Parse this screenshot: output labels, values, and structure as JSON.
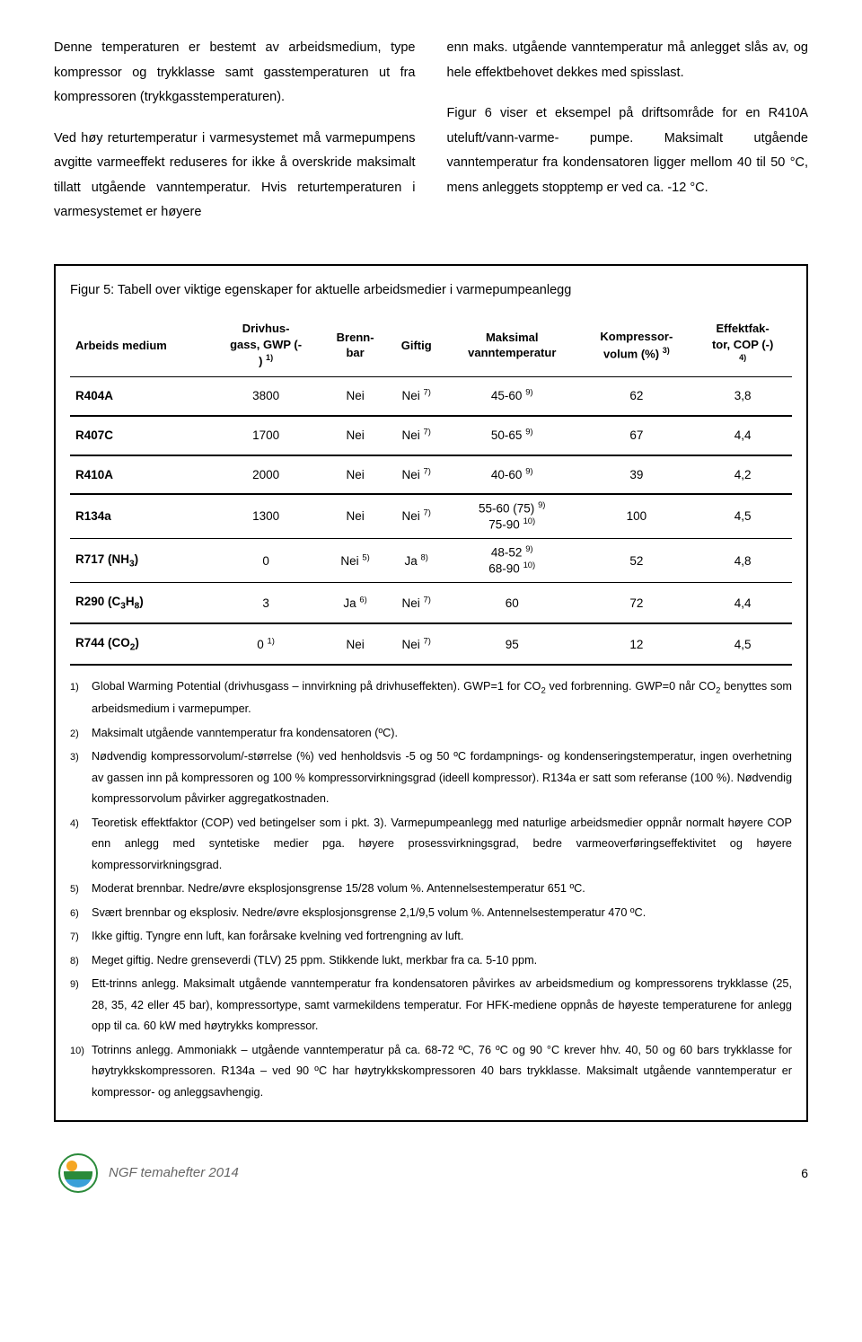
{
  "intro": {
    "left_p1": "Denne temperaturen er bestemt av arbeidsmedium, type kompressor og trykklasse samt gasstemperaturen ut fra kompressoren (trykkgasstemperaturen).",
    "left_p2": "Ved høy returtemperatur i varmesystemet må varmepumpens avgitte varmeeffekt reduseres for ikke å overskride maksimalt tillatt utgående vanntemperatur. Hvis returtemperaturen i varmesystemet er høyere",
    "right_p1": "enn maks. utgående vanntemperatur må anlegget slås av, og hele effektbehovet dekkes med spisslast.",
    "right_p2": "Figur 6 viser et eksempel på driftsområde for en R410A uteluft/vann-varme- pumpe. Maksimalt utgående vanntemperatur fra kondensatoren ligger mellom 40 til 50 °C, mens anleggets stopptemp er ved ca. -12 °C."
  },
  "table": {
    "caption": "Figur 5: Tabell over viktige egenskaper for aktuelle arbeidsmedier i varmepumpeanlegg",
    "headers": {
      "c0": "Arbeids medium",
      "c1_l1": "Drivhus-",
      "c1_l2": "gass, GWP (-",
      "c1_l3": ")",
      "c1_sup": "1)",
      "c2_l1": "Brenn-",
      "c2_l2": "bar",
      "c3": "Giftig",
      "c4_l1": "Maksimal",
      "c4_l2": "vanntemperatur",
      "c5_l1": "Kompressor-",
      "c5_l2": "volum (%)",
      "c5_sup": "3)",
      "c6_l1": "Effektfak-",
      "c6_l2": "tor, COP (-)",
      "c6_sup": "4)"
    },
    "rows": [
      {
        "name": "R404A",
        "gwp": "3800",
        "brenn": "Nei",
        "gift": "Nei",
        "gift_sup": "7)",
        "temp": "45-60",
        "temp_sup": "9)",
        "vol": "62",
        "cop": "3,8",
        "thick": true
      },
      {
        "name": "R407C",
        "gwp": "1700",
        "brenn": "Nei",
        "gift": "Nei",
        "gift_sup": "7)",
        "temp": "50-65",
        "temp_sup": "9)",
        "vol": "67",
        "cop": "4,4",
        "thick": true
      },
      {
        "name": "R410A",
        "gwp": "2000",
        "brenn": "Nei",
        "gift": "Nei",
        "gift_sup": "7)",
        "temp": "40-60",
        "temp_sup": "9)",
        "vol": "39",
        "cop": "4,2",
        "thick": true
      },
      {
        "name": "R134a",
        "gwp": "1300",
        "brenn": "Nei",
        "gift": "Nei",
        "gift_sup": "7)",
        "temp": "55-60 (75)",
        "temp_sup": "9)",
        "temp2": "75-90",
        "temp2_sup": "10)",
        "vol": "100",
        "cop": "4,5"
      },
      {
        "name": "R717 (NH",
        "name_sub": "3",
        "name_after": ")",
        "gwp": "0",
        "brenn": "Nei",
        "brenn_sup": "5)",
        "gift": "Ja",
        "gift_sup": "8)",
        "temp": "48-52",
        "temp_sup": "9)",
        "temp2": "68-90",
        "temp2_sup": "10)",
        "vol": "52",
        "cop": "4,8"
      },
      {
        "name": "R290 (C",
        "name_sub": "3",
        "name_mid": "H",
        "name_sub2": "8",
        "name_after": ")",
        "gwp": "3",
        "brenn": "Ja",
        "brenn_sup": "6)",
        "gift": "Nei",
        "gift_sup": "7)",
        "temp": "60",
        "vol": "72",
        "cop": "4,4",
        "thick": true
      },
      {
        "name": "R744 (CO",
        "name_sub": "2",
        "name_after": ")",
        "gwp": "0",
        "gwp_sup": "1)",
        "brenn": "Nei",
        "gift": "Nei",
        "gift_sup": "7)",
        "temp": "95",
        "vol": "12",
        "cop": "4,5",
        "thick": true
      }
    ]
  },
  "notes": [
    {
      "n": "1)",
      "t": "Global Warming Potential (drivhusgass – innvirkning på drivhuseffekten). GWP=1 for CO",
      "sub": "2",
      "t2": " ved forbrenning. GWP=0 når CO",
      "sub2": "2",
      "t3": " benyttes som arbeidsmedium i varmepumper."
    },
    {
      "n": "2)",
      "t": "Maksimalt utgående vanntemperatur fra kondensatoren (ºC)."
    },
    {
      "n": "3)",
      "t": "Nødvendig kompressorvolum/-størrelse (%) ved henholdsvis -5 og 50 ºC fordampnings- og kondenseringstemperatur, ingen overhetning av gassen inn på kompressoren og 100 % kompressorvirkningsgrad (ideell kompressor). R134a er satt som referanse (100 %). Nødvendig kompressorvolum påvirker aggregatkostnaden."
    },
    {
      "n": "4)",
      "t": "Teoretisk effektfaktor (COP) ved betingelser som i pkt. 3). Varmepumpeanlegg med naturlige arbeidsmedier oppnår normalt høyere COP enn anlegg med syntetiske medier pga. høyere prosessvirkningsgrad, bedre varmeoverføringseffektivitet og høyere kompressorvirkningsgrad."
    },
    {
      "n": "5)",
      "t": "Moderat brennbar. Nedre/øvre eksplosjonsgrense 15/28 volum %. Antennelsestemperatur 651 ºC."
    },
    {
      "n": "6)",
      "t": "Svært brennbar og eksplosiv. Nedre/øvre eksplosjonsgrense 2,1/9,5 volum %. Antennelsestemperatur 470 ºC."
    },
    {
      "n": "7)",
      "t": "Ikke giftig. Tyngre enn luft, kan forårsake kvelning ved fortrengning av luft."
    },
    {
      "n": "8)",
      "t": "Meget giftig. Nedre grenseverdi (TLV) 25 ppm. Stikkende lukt, merkbar fra ca. 5-10 ppm."
    },
    {
      "n": "9)",
      "t": "Ett-trinns anlegg. Maksimalt utgående vanntemperatur fra kondensatoren påvirkes av arbeidsmedium og kompressorens trykklasse (25, 28, 35, 42 eller 45 bar), kompressortype, samt varmekildens temperatur. For HFK-mediene oppnås de høyeste temperaturene for anlegg opp til ca. 60 kW med høytrykks kompressor."
    },
    {
      "n": "10)",
      "t": "Totrinns anlegg. Ammoniakk – utgående vanntemperatur på ca. 68-72 ºC, 76 ºC og 90 °C krever hhv. 40, 50 og  60 bars trykklasse for høytrykkskompressoren. R134a – ved 90 ºC har høytrykkskompressoren 40 bars trykklasse.  Maksimalt utgående vanntemperatur er kompressor- og anleggsavhengig."
    }
  ],
  "footer": {
    "text": "NGF temahefter 2014",
    "page": "6"
  }
}
